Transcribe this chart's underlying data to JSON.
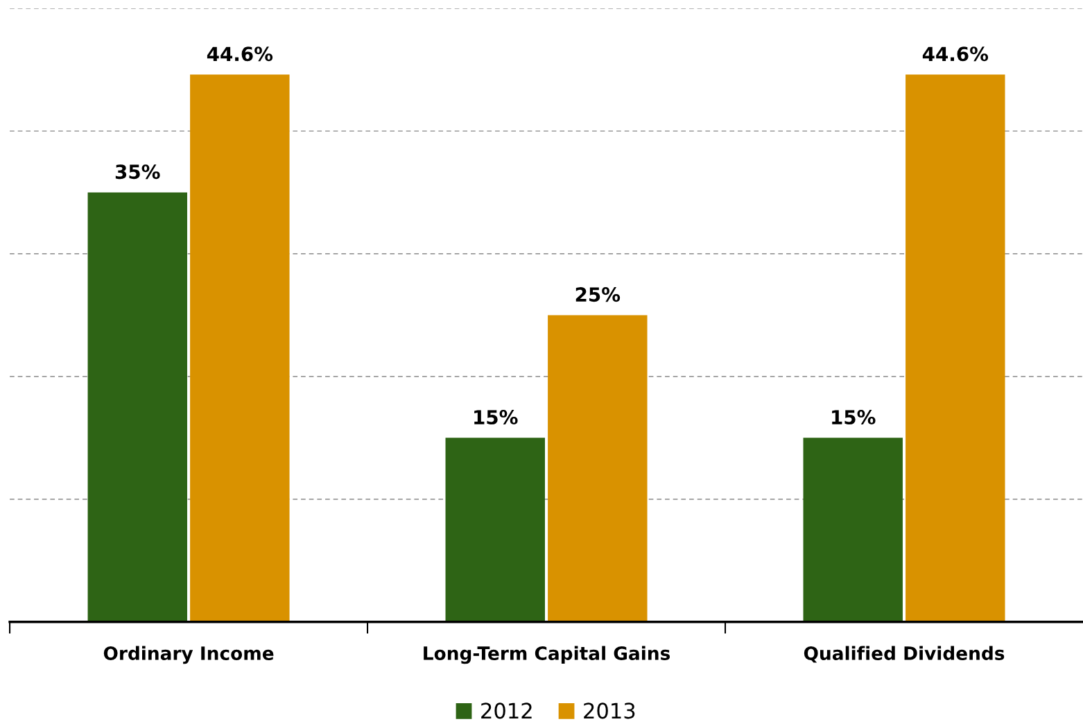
{
  "chart_data": {
    "type": "bar",
    "categories": [
      "Ordinary Income",
      "Long-Term Capital Gains",
      "Qualified Dividends"
    ],
    "series": [
      {
        "name": "2012",
        "color": "#2e6415",
        "values": [
          35,
          15,
          15
        ],
        "value_labels": [
          "35%",
          "15%",
          "15%"
        ]
      },
      {
        "name": "2013",
        "color": "#d99200",
        "values": [
          44.6,
          25,
          44.6
        ],
        "value_labels": [
          "44.6%",
          "25%",
          "44.6%"
        ]
      }
    ],
    "relative": false,
    "ylim": [
      0,
      50
    ],
    "yticks": [
      {
        "value": 10,
        "label": null
      },
      {
        "value": 20,
        "label": null
      },
      {
        "value": 30,
        "label": null
      },
      {
        "value": 40,
        "label": null
      },
      {
        "value": 50,
        "label": null
      }
    ],
    "grid": "y",
    "legend": "bottom",
    "tick_labels": "x"
  }
}
